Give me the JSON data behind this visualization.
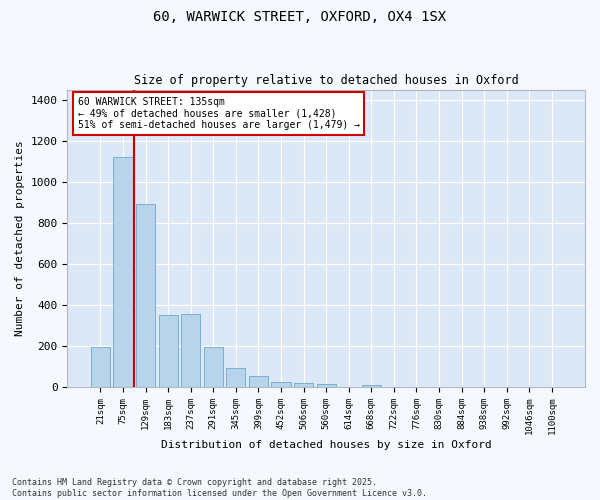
{
  "title_line1": "60, WARWICK STREET, OXFORD, OX4 1SX",
  "title_line2": "Size of property relative to detached houses in Oxford",
  "xlabel": "Distribution of detached houses by size in Oxford",
  "ylabel": "Number of detached properties",
  "categories": [
    "21sqm",
    "75sqm",
    "129sqm",
    "183sqm",
    "237sqm",
    "291sqm",
    "345sqm",
    "399sqm",
    "452sqm",
    "506sqm",
    "560sqm",
    "614sqm",
    "668sqm",
    "722sqm",
    "776sqm",
    "830sqm",
    "884sqm",
    "938sqm",
    "992sqm",
    "1046sqm",
    "1100sqm"
  ],
  "values": [
    195,
    1120,
    890,
    350,
    355,
    195,
    95,
    55,
    25,
    22,
    16,
    0,
    12,
    0,
    0,
    0,
    0,
    0,
    0,
    0,
    0
  ],
  "bar_color": "#b8d4ea",
  "bar_edge_color": "#7aafd0",
  "plot_bg_color": "#dce8f5",
  "fig_bg_color": "#f5f8fc",
  "grid_color": "#ffffff",
  "annotation_box_text_line1": "60 WARWICK STREET: 135sqm",
  "annotation_box_text_line2": "← 49% of detached houses are smaller (1,428)",
  "annotation_box_text_line3": "51% of semi-detached houses are larger (1,479) →",
  "vline_color": "#cc0000",
  "annotation_box_color": "#cc0000",
  "ylim": [
    0,
    1450
  ],
  "yticks": [
    0,
    200,
    400,
    600,
    800,
    1000,
    1200,
    1400
  ],
  "footer_line1": "Contains HM Land Registry data © Crown copyright and database right 2025.",
  "footer_line2": "Contains public sector information licensed under the Open Government Licence v3.0."
}
